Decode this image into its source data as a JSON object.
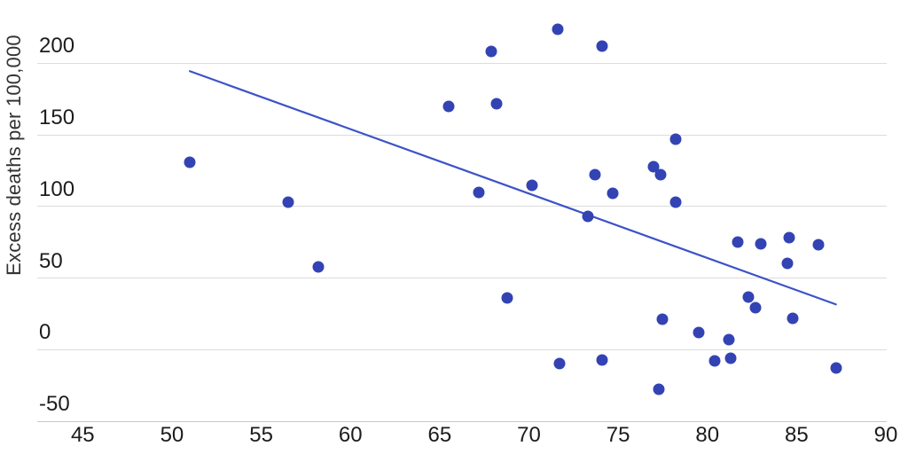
{
  "chart_data": {
    "type": "scatter",
    "title": "",
    "xlabel": "",
    "ylabel": "Excess deaths per 100,000",
    "legend": "none",
    "grid": "horizontal-only",
    "xlim": [
      42.45,
      90.05
    ],
    "ylim": [
      -50,
      238
    ],
    "x_ticks": [
      45,
      50,
      55,
      60,
      65,
      70,
      75,
      80,
      85,
      90
    ],
    "y_ticks": [
      200,
      150,
      100,
      50,
      0,
      -50
    ],
    "points": [
      {
        "x": 51.0,
        "y": 131
      },
      {
        "x": 56.5,
        "y": 103
      },
      {
        "x": 58.2,
        "y": 58
      },
      {
        "x": 65.5,
        "y": 170
      },
      {
        "x": 67.2,
        "y": 110
      },
      {
        "x": 67.9,
        "y": 208
      },
      {
        "x": 68.2,
        "y": 172
      },
      {
        "x": 68.8,
        "y": 36
      },
      {
        "x": 70.2,
        "y": 115
      },
      {
        "x": 71.6,
        "y": 224
      },
      {
        "x": 71.7,
        "y": -10
      },
      {
        "x": 73.3,
        "y": 93
      },
      {
        "x": 73.7,
        "y": 122
      },
      {
        "x": 74.1,
        "y": 212
      },
      {
        "x": 74.1,
        "y": -7
      },
      {
        "x": 74.7,
        "y": 109
      },
      {
        "x": 77.0,
        "y": 128
      },
      {
        "x": 77.4,
        "y": 122
      },
      {
        "x": 77.3,
        "y": -28
      },
      {
        "x": 77.5,
        "y": 21
      },
      {
        "x": 78.2,
        "y": 147
      },
      {
        "x": 78.2,
        "y": 103
      },
      {
        "x": 79.5,
        "y": 12
      },
      {
        "x": 80.4,
        "y": -8
      },
      {
        "x": 81.2,
        "y": 7
      },
      {
        "x": 81.3,
        "y": -6
      },
      {
        "x": 81.7,
        "y": 75
      },
      {
        "x": 82.3,
        "y": 37
      },
      {
        "x": 82.7,
        "y": 29
      },
      {
        "x": 83.0,
        "y": 74
      },
      {
        "x": 84.5,
        "y": 60
      },
      {
        "x": 84.6,
        "y": 78
      },
      {
        "x": 84.8,
        "y": 22
      },
      {
        "x": 86.2,
        "y": 73
      },
      {
        "x": 87.2,
        "y": -13
      }
    ],
    "trend_line": {
      "x1": 51.0,
      "y1": 194.5,
      "x2": 87.2,
      "y2": 31.6
    }
  },
  "colors": {
    "point": "#3343b4",
    "trend": "#3c52c8",
    "grid": "#dcdcdc",
    "axis_line": "#c9c9c9",
    "tick_text": "#1c1c1c",
    "axis_title_text": "#333333",
    "background": "#ffffff"
  }
}
